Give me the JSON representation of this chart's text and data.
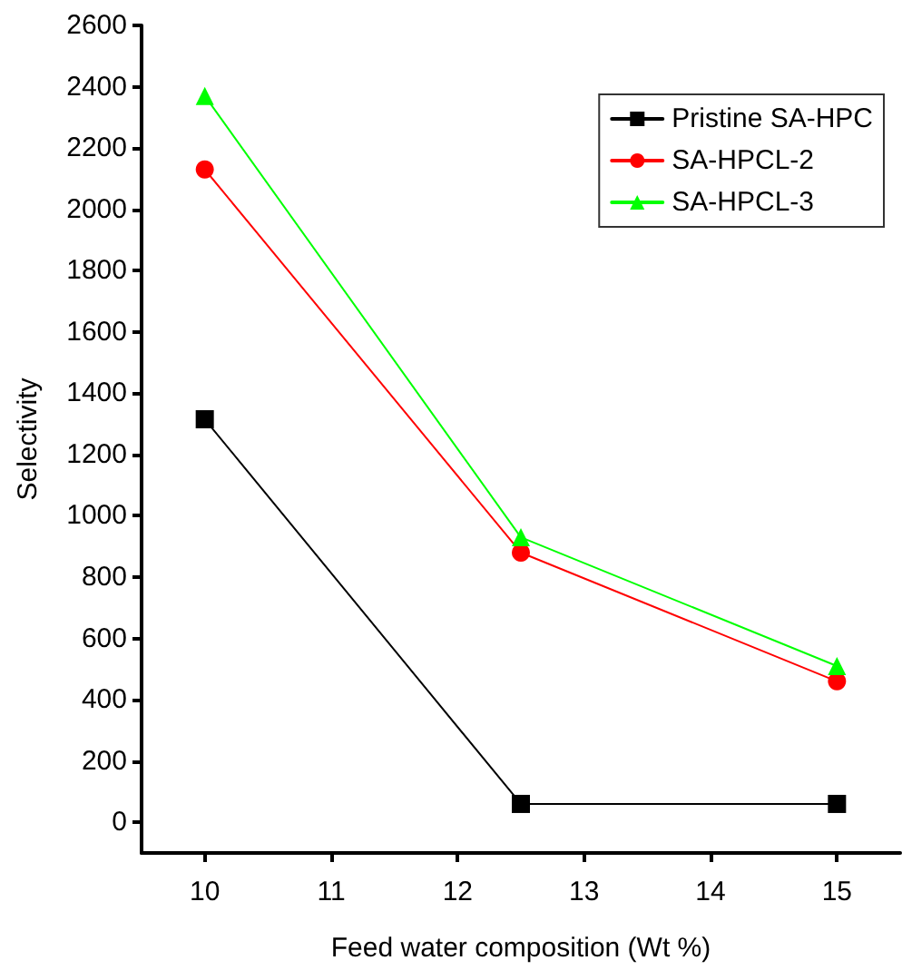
{
  "chart_data": {
    "type": "line",
    "xlabel": "Feed water composition (Wt %)",
    "ylabel": "Selectivity",
    "x": [
      10,
      12.5,
      15
    ],
    "series": [
      {
        "name": "Pristine SA-HPC",
        "color": "#000000",
        "marker": "square",
        "values": [
          1315,
          60,
          60
        ]
      },
      {
        "name": "SA-HPCL-2",
        "color": "#ff0000",
        "marker": "circle",
        "values": [
          2130,
          880,
          460
        ]
      },
      {
        "name": "SA-HPCL-3",
        "color": "#00ff00",
        "marker": "triangle",
        "values": [
          2370,
          930,
          510
        ]
      }
    ],
    "xlim": [
      9.5,
      15.5
    ],
    "xticks": [
      10,
      11,
      12,
      13,
      14,
      15
    ],
    "ylim": [
      -100,
      2600
    ],
    "yticks": [
      0,
      200,
      400,
      600,
      800,
      1000,
      1200,
      1400,
      1600,
      1800,
      2000,
      2200,
      2400,
      2600
    ],
    "grid": false,
    "legend": "top right",
    "line_style": "solid"
  }
}
